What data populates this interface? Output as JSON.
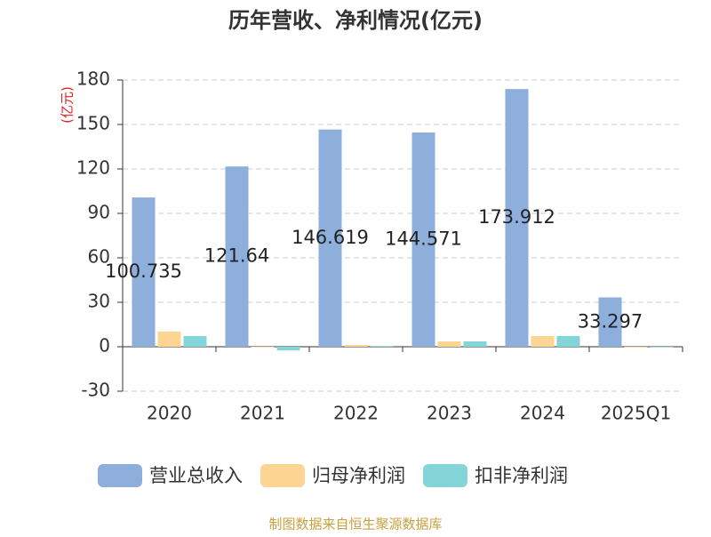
{
  "chart_data": {
    "type": "bar",
    "title": "历年营收、净利情况(亿元)",
    "y_unit": "(亿元)",
    "categories": [
      "2020",
      "2021",
      "2022",
      "2023",
      "2024",
      "2025Q1"
    ],
    "series": [
      {
        "name": "营业总收入",
        "color": "#8eaedc",
        "values": [
          100.735,
          121.64,
          146.619,
          144.571,
          173.912,
          33.297
        ],
        "labels": true
      },
      {
        "name": "归母净利润",
        "color": "#fcd592",
        "values": [
          10.2,
          -0.3,
          1.2,
          3.6,
          7.2,
          -0.5
        ]
      },
      {
        "name": "扣非净利润",
        "color": "#84d5d8",
        "values": [
          7.2,
          -2.5,
          0.5,
          3.6,
          7.2,
          -0.4
        ]
      }
    ],
    "ylim": [
      -30,
      180
    ],
    "yticks": [
      -30,
      0,
      30,
      60,
      90,
      120,
      150,
      180
    ],
    "grid": true,
    "source": "制图数据来自恒生聚源数据库"
  }
}
